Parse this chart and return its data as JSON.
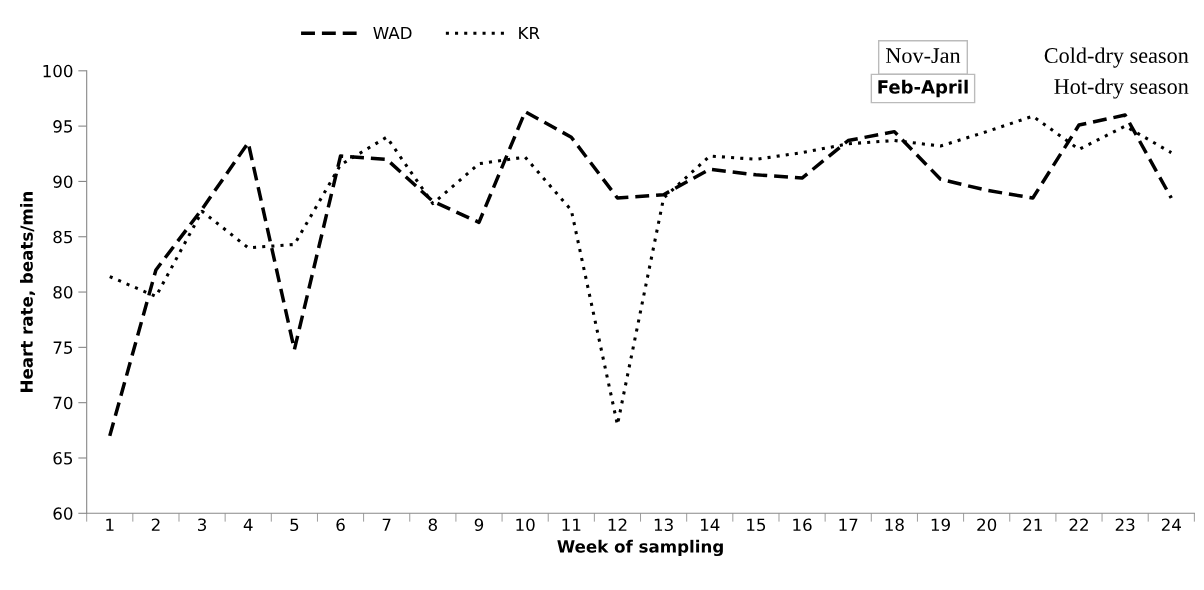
{
  "chart_data": {
    "type": "line",
    "xlabel": "Week of sampling",
    "ylabel": "Heart rate, beats/min",
    "categories": [
      "1",
      "2",
      "3",
      "4",
      "5",
      "6",
      "7",
      "8",
      "9",
      "10",
      "11",
      "12",
      "13",
      "14",
      "15",
      "16",
      "17",
      "18",
      "19",
      "20",
      "21",
      "22",
      "23",
      "24"
    ],
    "series": [
      {
        "name": "WAD",
        "color": "#000000",
        "line_style": "dashed",
        "values": [
          67,
          82,
          87.5,
          93.5,
          74.8,
          92.3,
          92,
          88.2,
          86.3,
          96.3,
          94,
          88.5,
          88.8,
          91.1,
          90.6,
          90.3,
          93.7,
          94.5,
          90.2,
          89.2,
          88.5,
          95.1,
          96,
          88.5
        ]
      },
      {
        "name": "KR",
        "color": "#000000",
        "line_style": "dotted",
        "values": [
          81.4,
          79.6,
          87.3,
          84,
          84.3,
          91.5,
          94,
          88,
          91.6,
          92.2,
          87.4,
          68,
          88.5,
          92.3,
          92,
          92.6,
          93.4,
          93.7,
          93.2,
          94.5,
          95.9,
          92.9,
          95,
          92.6
        ]
      }
    ],
    "ylim": [
      60,
      100
    ],
    "yticks": [
      60,
      65,
      70,
      75,
      80,
      85,
      90,
      95,
      100
    ],
    "grid": false,
    "legend": "top left",
    "marker": "none",
    "annotations": [
      "Nov-Jan",
      "Cold-dry season",
      "Feb-April",
      "Hot-dry season"
    ]
  }
}
